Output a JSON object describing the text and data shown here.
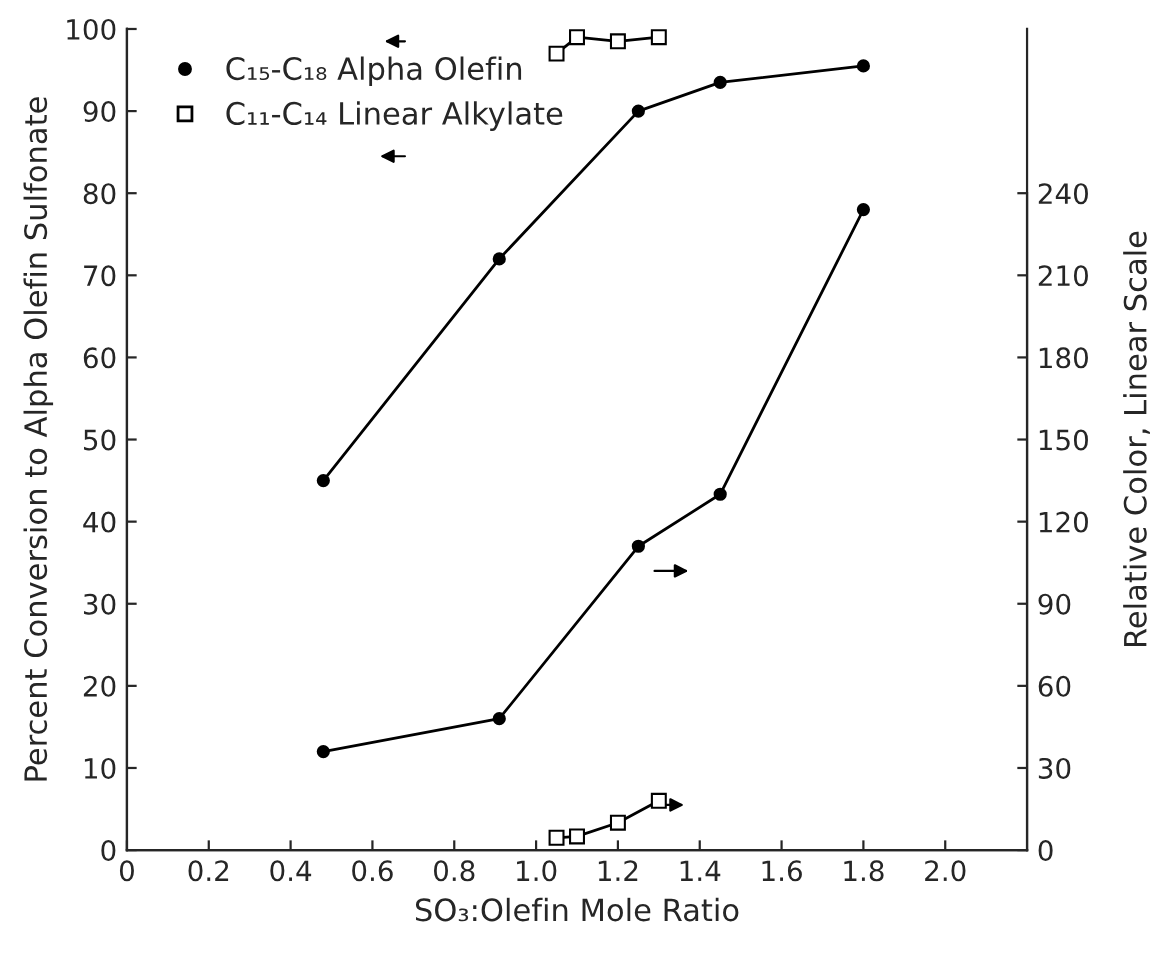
{
  "chart_data": {
    "type": "line",
    "xlabel": "SO₃:Olefin Mole Ratio",
    "ylabel": "Percent Conversion to Alpha Olefin Sulfonate",
    "y2label": "Relative Color, Linear Scale",
    "series": [
      {
        "name": "C₁₅-C₁₈ Alpha Olefin",
        "color": "#000000",
        "marker": "circle",
        "x": [
          0.48,
          0.91,
          1.25,
          1.45,
          1.8
        ],
        "values": [
          45,
          72,
          90,
          93.5,
          95.5
        ]
      },
      {
        "name": "C₁₁-C₁₄ Linear Alkylate",
        "color": "#000000",
        "marker": "square",
        "x": [
          1.05,
          1.1,
          1.2,
          1.3
        ],
        "values": [
          97,
          99,
          98.5,
          99
        ]
      },
      {
        "color": "#000000",
        "marker": "circle",
        "axis": "y2",
        "x": [
          0.48,
          0.91,
          1.25,
          1.45,
          1.8
        ],
        "values": [
          36,
          48,
          111,
          130,
          234
        ]
      },
      {
        "color": "#000000",
        "marker": "square",
        "axis": "y2",
        "x": [
          1.05,
          1.1,
          1.2,
          1.3
        ],
        "values": [
          4.5,
          5,
          10,
          18
        ]
      }
    ],
    "xlim": [
      0,
      2.2
    ],
    "xticks": [
      0,
      0.2,
      0.4,
      0.6,
      0.8,
      {
        "value": 1,
        "label": "1.0"
      },
      1.2,
      1.4,
      1.6,
      1.8,
      {
        "value": 2,
        "label": "2.0"
      }
    ],
    "ylim": [
      0,
      100
    ],
    "yticks": [
      0,
      10,
      20,
      30,
      40,
      50,
      60,
      70,
      80,
      90,
      100
    ],
    "y2lim": [
      0,
      300
    ],
    "y2ticks": [
      0,
      30,
      60,
      90,
      120,
      150,
      180,
      210,
      240
    ],
    "grid": false,
    "legend": "top left",
    "line_style": "solid"
  }
}
